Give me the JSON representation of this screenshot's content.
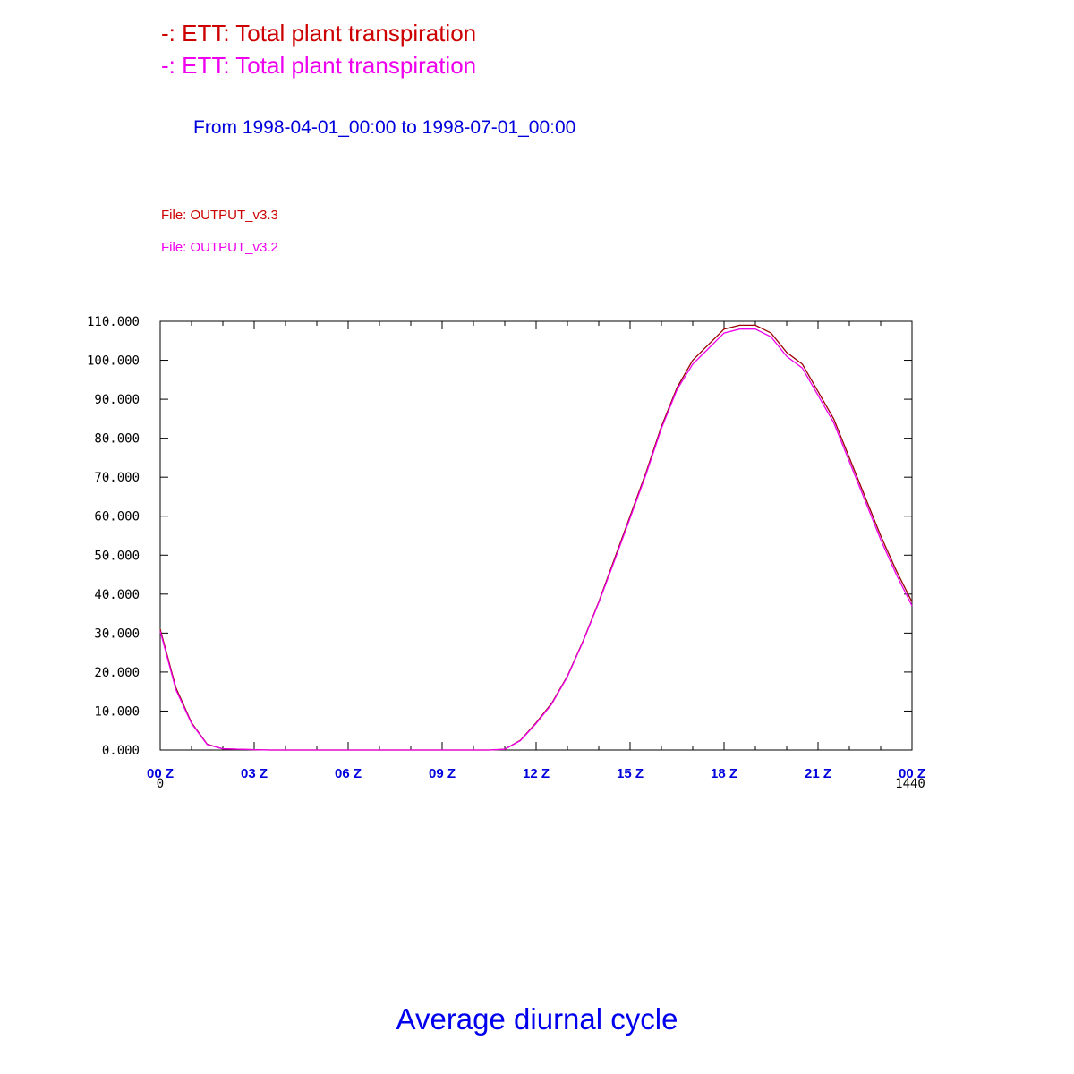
{
  "header": {
    "legend": [
      {
        "text": "-: ETT: Total plant transpiration",
        "color": "#cc0000"
      },
      {
        "text": "-: ETT: Total plant transpiration",
        "color": "#ee00ee"
      }
    ],
    "period": "From 1998-04-01_00:00 to 1998-07-01_00:00",
    "files": [
      {
        "text": "File: OUTPUT_v3.3",
        "color": "#cc0000"
      },
      {
        "text": "File: OUTPUT_v3.2",
        "color": "#ee00ee"
      }
    ]
  },
  "footer": {
    "title": "Average diurnal cycle"
  },
  "chart_data": {
    "type": "line",
    "title": "Average diurnal cycle",
    "xlabel": "",
    "ylabel": "",
    "xlim": [
      0,
      1440
    ],
    "ylim": [
      0,
      110
    ],
    "grid": false,
    "axis_colors": {
      "frame": "#000000",
      "x_tick_labels": "#0000dd",
      "y_tick_labels": "#000000"
    },
    "y_ticks": [
      {
        "value": 0,
        "label": "0.000"
      },
      {
        "value": 10,
        "label": "10.000"
      },
      {
        "value": 20,
        "label": "20.000"
      },
      {
        "value": 30,
        "label": "30.000"
      },
      {
        "value": 40,
        "label": "40.000"
      },
      {
        "value": 50,
        "label": "50.000"
      },
      {
        "value": 60,
        "label": "60.000"
      },
      {
        "value": 70,
        "label": "70.000"
      },
      {
        "value": 80,
        "label": "80.000"
      },
      {
        "value": 90,
        "label": "90.000"
      },
      {
        "value": 100,
        "label": "100.000"
      },
      {
        "value": 110,
        "label": "110.000"
      }
    ],
    "x_ticks": [
      {
        "value": 0,
        "label": "00 Z"
      },
      {
        "value": 180,
        "label": "03 Z"
      },
      {
        "value": 360,
        "label": "06 Z"
      },
      {
        "value": 540,
        "label": "09 Z"
      },
      {
        "value": 720,
        "label": "12 Z"
      },
      {
        "value": 900,
        "label": "15 Z"
      },
      {
        "value": 1080,
        "label": "18 Z"
      },
      {
        "value": 1260,
        "label": "21 Z"
      },
      {
        "value": 1440,
        "label": "00 Z"
      }
    ],
    "x_end_labels": [
      {
        "value": 0,
        "label": "0"
      },
      {
        "value": 1440,
        "label": "1440"
      }
    ],
    "x": [
      0,
      30,
      60,
      90,
      120,
      150,
      180,
      210,
      240,
      270,
      300,
      330,
      360,
      390,
      420,
      450,
      480,
      510,
      540,
      570,
      600,
      630,
      660,
      690,
      720,
      750,
      780,
      810,
      840,
      870,
      900,
      930,
      960,
      990,
      1020,
      1050,
      1080,
      1110,
      1140,
      1170,
      1200,
      1230,
      1260,
      1290,
      1320,
      1350,
      1380,
      1410,
      1440
    ],
    "series": [
      {
        "color": "#990000",
        "values": [
          31,
          16,
          7,
          1.5,
          0.3,
          0.2,
          0.1,
          0,
          0,
          0,
          0,
          0,
          0,
          0,
          0,
          0,
          0,
          0,
          0,
          0,
          0,
          0,
          0.2,
          2.5,
          7,
          12,
          19,
          28,
          38,
          49,
          60,
          71,
          83,
          93,
          100,
          104,
          108,
          109,
          109,
          107,
          102,
          99,
          92,
          85,
          75,
          65,
          55,
          46,
          38
        ]
      },
      {
        "color": "#ee00ee",
        "values": [
          30.5,
          15.5,
          6.8,
          1.4,
          0.3,
          0.2,
          0.1,
          0,
          0,
          0,
          0,
          0,
          0,
          0,
          0,
          0,
          0,
          0,
          0,
          0,
          0,
          0,
          0.2,
          2.4,
          6.8,
          11.8,
          18.8,
          27.8,
          37.8,
          48.5,
          59.5,
          70.5,
          82.5,
          92.5,
          99,
          103,
          107,
          108,
          108,
          106,
          101,
          98,
          91,
          84,
          74,
          64,
          54,
          45,
          37
        ]
      }
    ]
  }
}
